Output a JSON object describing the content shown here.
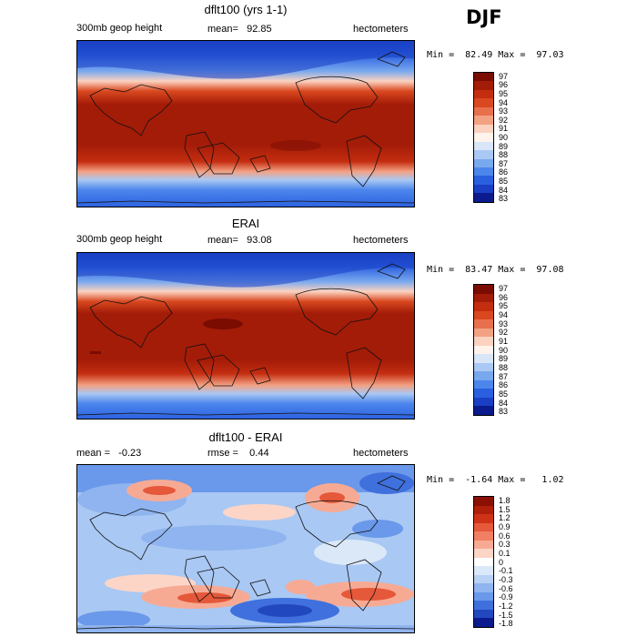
{
  "season": "DJF",
  "panels": [
    {
      "title": "dflt100 (yrs 1-1)",
      "left_label": "300mb geop height",
      "center_label": "mean=   92.85",
      "units": "hectometers",
      "minmax": "Min =  82.49 Max =  97.03"
    },
    {
      "title": "ERAI",
      "left_label": "300mb geop height",
      "center_label": "mean=   93.08",
      "units": "hectometers",
      "minmax": "Min =  83.47 Max =  97.08"
    },
    {
      "title": "dflt100 - ERAI",
      "left_label": "mean =   -0.23",
      "center_label": "rmse =    0.44",
      "units": "hectometers",
      "minmax": "Min =  -1.64 Max =   1.02"
    }
  ],
  "colorbars": {
    "height_levels": [
      "97",
      "96",
      "95",
      "94",
      "93",
      "92",
      "91",
      "90",
      "89",
      "88",
      "87",
      "86",
      "85",
      "84",
      "83"
    ],
    "height_colors": [
      "#7a0c02",
      "#a31c08",
      "#c42d10",
      "#d9481f",
      "#e8704d",
      "#f3a183",
      "#fbd2c0",
      "#fff3ec",
      "#d8e6f8",
      "#a9c8f3",
      "#78a8ee",
      "#4c86ec",
      "#2a5fe0",
      "#1a3fc4",
      "#0b1a8c"
    ],
    "diff_levels": [
      "1.8",
      "1.5",
      "1.2",
      "0.9",
      "0.6",
      "0.3",
      "0.1",
      "0",
      "-0.1",
      "-0.3",
      "-0.6",
      "-0.9",
      "-1.2",
      "-1.5",
      "-1.8"
    ],
    "diff_colors": [
      "#8a1004",
      "#b01f0a",
      "#cf3317",
      "#e5583a",
      "#f07f63",
      "#f7aa93",
      "#fcd5c7",
      "#ffffff",
      "#dbe8f8",
      "#b8d1f4",
      "#8fb4ef",
      "#6a98ea",
      "#3f70dd",
      "#2248bf",
      "#0b1a8c"
    ]
  }
}
